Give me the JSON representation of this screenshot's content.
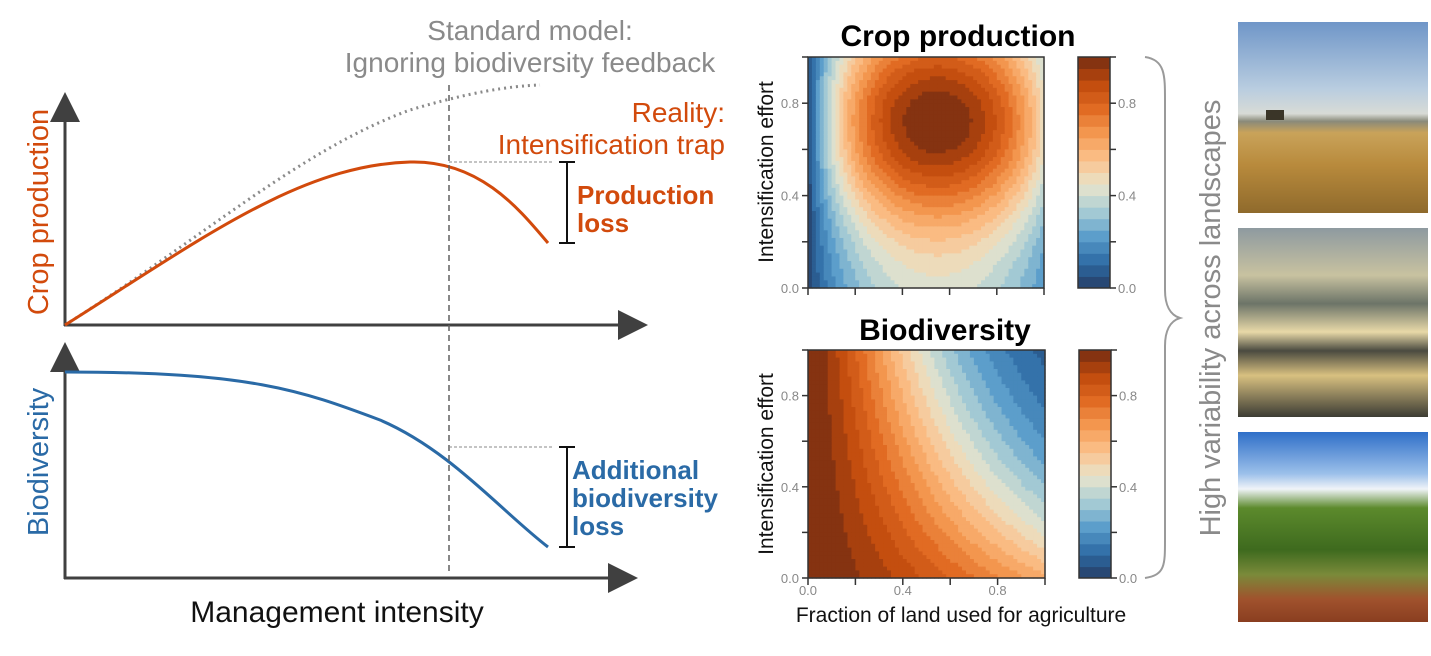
{
  "left_panel": {
    "standard_model_line1": "Standard model:",
    "standard_model_line2": "Ignoring biodiversity feedback",
    "reality_line1": "Reality:",
    "reality_line2": "Intensification trap",
    "production_loss_line1": "Production",
    "production_loss_line2": "loss",
    "biodiv_loss_line1": "Additional",
    "biodiv_loss_line2": "biodiversity",
    "biodiv_loss_line3": "loss",
    "ylabel_top": "Crop production",
    "ylabel_bottom": "Biodiversity",
    "xlabel": "Management intensity"
  },
  "colors": {
    "orange": "#d24a0c",
    "blue": "#2a6aa6",
    "gray": "#8a8a8a",
    "axis": "#404040",
    "colormap": [
      "#263e66",
      "#2e6ca5",
      "#5a9dcb",
      "#a8cdd5",
      "#e8e4cc",
      "#fbc28c",
      "#f59a52",
      "#e06a22",
      "#c04a0c",
      "#742c12"
    ]
  },
  "heatmaps": {
    "top_title": "Crop production",
    "bottom_title": "Biodiversity",
    "ylabel": "Intensification effort",
    "xlabel": "Fraction of land used for agriculture",
    "y_ticks": [
      "0.0",
      "0.4",
      "0.8"
    ],
    "x_ticks": [
      "0.0",
      "0.4",
      "0.8"
    ],
    "colorbar_ticks": [
      "0.0",
      "0.4",
      "0.8"
    ],
    "levels": 20
  },
  "side_label": "High variability across landscapes",
  "photos": [
    "wheat-harvest-photo",
    "rice-terraces-photo",
    "tropical-farm-photo"
  ]
}
